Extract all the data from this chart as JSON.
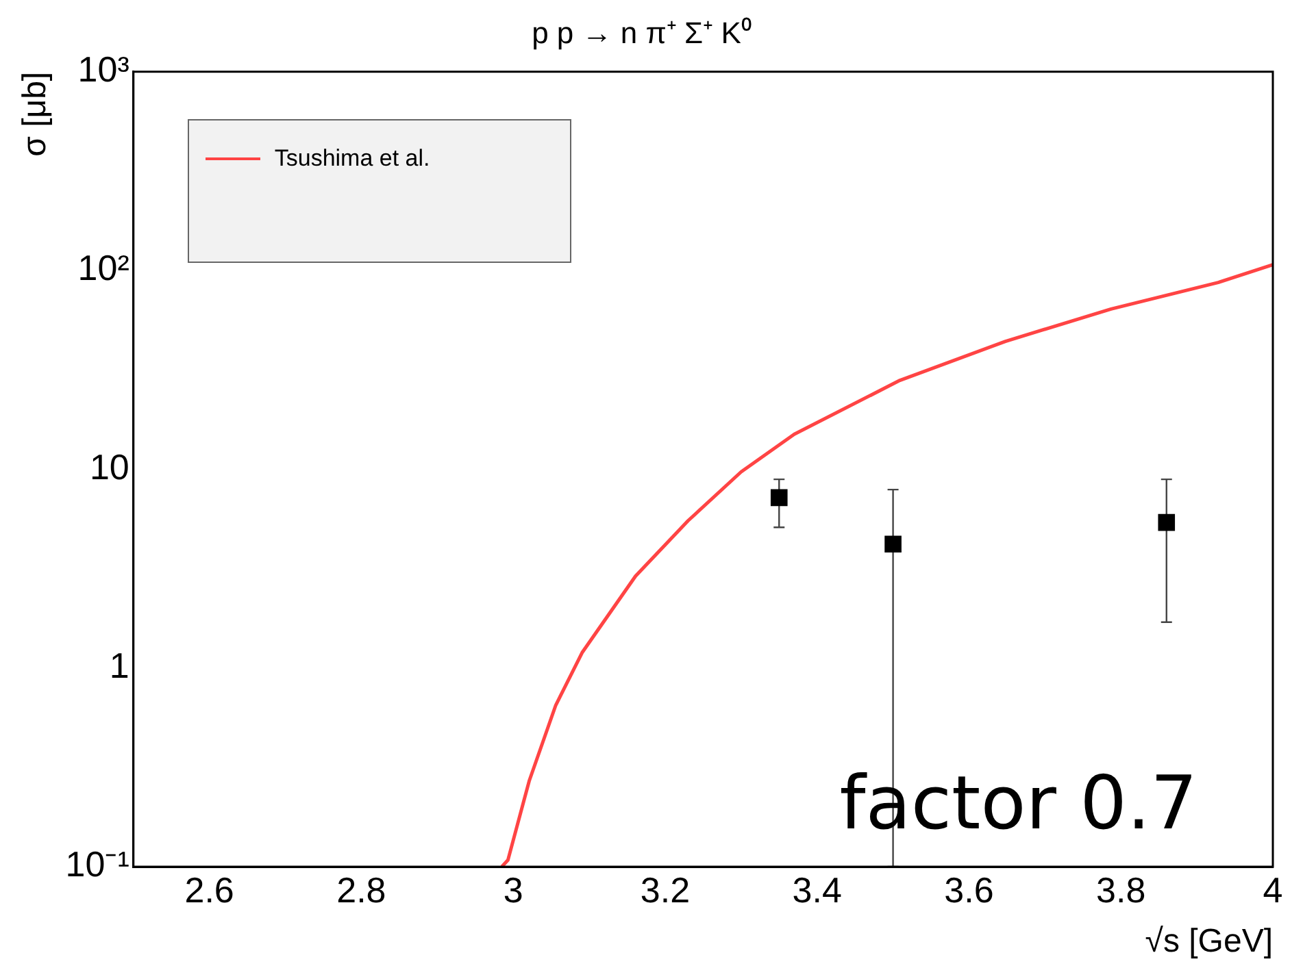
{
  "chart_data": {
    "type": "scatter",
    "title": "p p → n π⁺ Σ⁺ K⁰",
    "xlabel": "√s [GeV]",
    "ylabel": "σ [μb]",
    "annotations": [
      "factor 0.7"
    ],
    "xlim": [
      2.5,
      4
    ],
    "xticks": [
      2.6,
      2.8,
      3,
      3.2,
      3.4,
      3.6,
      3.8,
      4
    ],
    "ylim": [
      0.1,
      1000
    ],
    "yticks": [
      {
        "value": 0.1,
        "label": "10⁻¹"
      },
      1,
      10,
      {
        "value": 100,
        "label": "10²"
      },
      {
        "value": 1000,
        "label": "10³"
      }
    ],
    "log": "y",
    "grid": false,
    "legend": "top left",
    "series": [
      {
        "name": "Tsushima et al.",
        "type": "line",
        "color": "#ff4444",
        "marker": "none",
        "line_style": "solid",
        "x": [
          2.985,
          2.993,
          3.021,
          3.056,
          3.091,
          3.161,
          3.23,
          3.3,
          3.37,
          3.509,
          3.648,
          3.787,
          3.928,
          4.0
        ],
        "values": [
          0.1,
          0.108,
          0.27,
          0.65,
          1.2,
          2.9,
          5.5,
          9.7,
          15,
          28,
          44,
          64,
          87,
          107
        ]
      },
      {
        "color": "#000000",
        "marker": "square",
        "x": [
          3.35,
          3.5,
          3.86
        ],
        "values": [
          7.2,
          4.2,
          5.4
        ],
        "errors": [
          [
            5.1,
            8.9
          ],
          [
            0.1,
            7.9
          ],
          [
            1.7,
            8.9
          ]
        ]
      }
    ]
  }
}
